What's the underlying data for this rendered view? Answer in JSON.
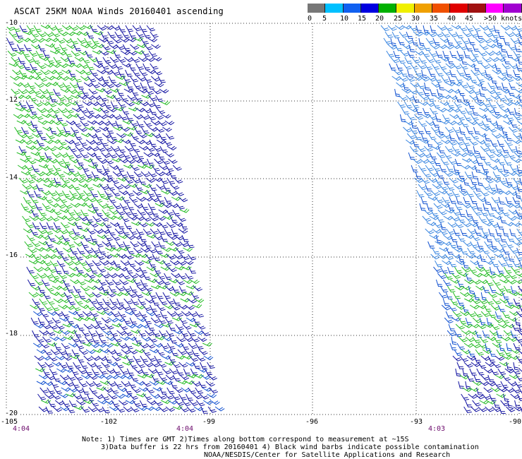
{
  "header": {
    "title": "ASCAT 25KM NOAA Winds 20160401  ascending"
  },
  "legend": {
    "unit_label": ">50 knots",
    "labels": [
      "0",
      "5",
      "10",
      "15",
      "20",
      "25",
      "30",
      "35",
      "40",
      "45",
      ">50 knots"
    ],
    "colors": [
      "#777777",
      "#00c0ff",
      "#1060f0",
      "#0000e0",
      "#00b000",
      "#f0f000",
      "#f0a000",
      "#f05000",
      "#e00000",
      "#a01010",
      "#ff00ff",
      "#a000d0"
    ]
  },
  "map": {
    "lat_labels": [
      "-10",
      "-12",
      "-14",
      "-16",
      "-18",
      "-20"
    ],
    "lon_labels": [
      "-105",
      "-102",
      "-99",
      "-96",
      "-93",
      "-90"
    ],
    "time_labels": [
      "4:04",
      "4:04",
      "4:03"
    ],
    "lat_range": [
      -20,
      -10
    ],
    "lon_range": [
      -105,
      -90
    ],
    "barb_colors": {
      "green": "#22bb22",
      "dark_blue": "#1010a0",
      "medium_blue": "#1050d0",
      "light_blue": "#3a86e0"
    }
  },
  "notes": {
    "line1": "Note: 1) Times are GMT 2)Times along bottom correspond to measurement at ~15S",
    "line2": "3)Data buffer is 22 hrs from 20160401 4) Black wind barbs indicate possible contamination",
    "line3": "NOAA/NESDIS/Center for Satellite Applications and Research"
  }
}
